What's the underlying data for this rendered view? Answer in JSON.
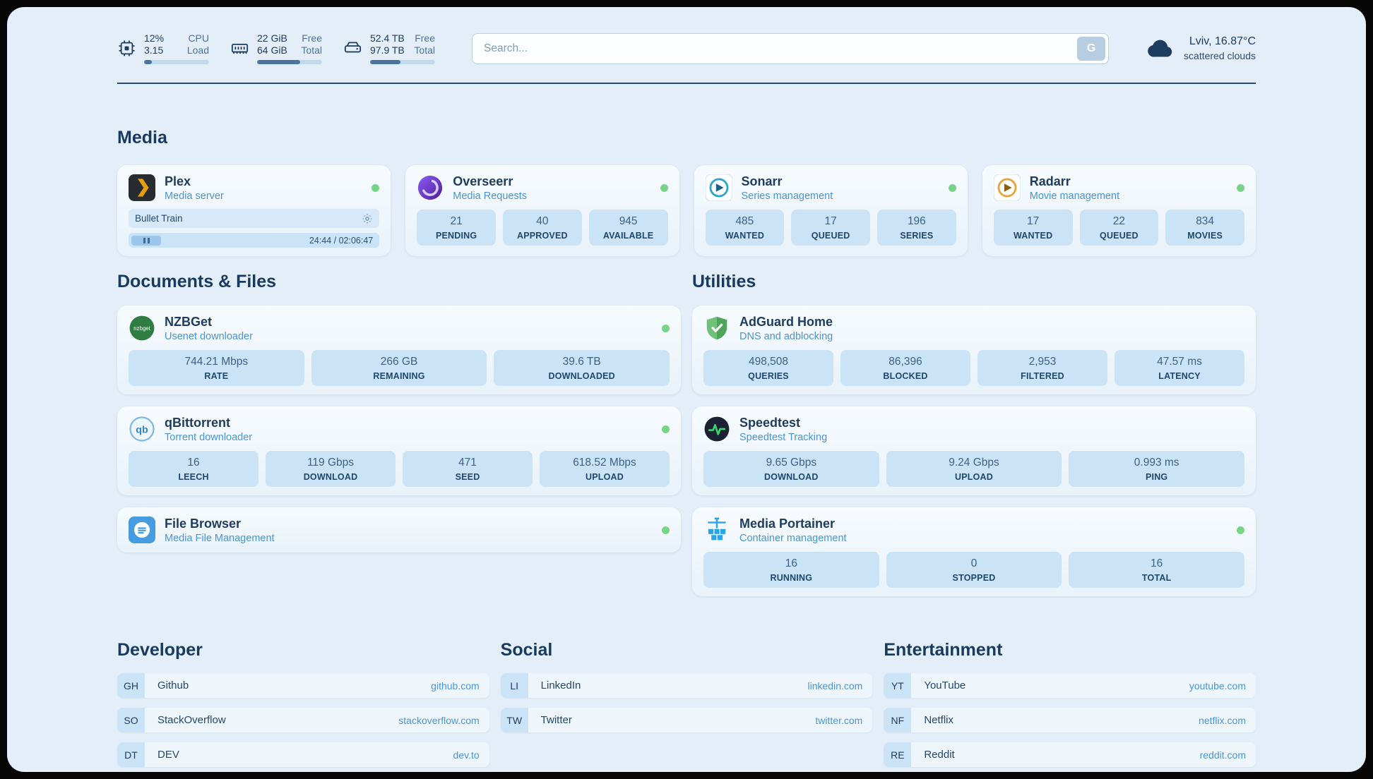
{
  "header": {
    "cpu": {
      "value1": "12%",
      "value2": "3.15",
      "label1": "CPU",
      "label2": "Load",
      "progress_pct": 12
    },
    "ram": {
      "value1": "22 GiB",
      "value2": "64 GiB",
      "label1": "Free",
      "label2": "Total",
      "progress_pct": 66
    },
    "disk": {
      "value1": "52.4 TB",
      "value2": "97.9 TB",
      "label1": "Free",
      "label2": "Total",
      "progress_pct": 47
    },
    "search": {
      "placeholder": "Search...",
      "button_label": "G"
    },
    "weather": {
      "location": "Lviv, 16.87°C",
      "condition": "scattered clouds"
    }
  },
  "sections": {
    "media": "Media",
    "documents": "Documents & Files",
    "utilities": "Utilities",
    "developer": "Developer",
    "social": "Social",
    "entertainment": "Entertainment"
  },
  "services": {
    "plex": {
      "name": "Plex",
      "desc": "Media server",
      "now_playing": "Bullet Train",
      "time": "24:44 / 02:06:47"
    },
    "overseerr": {
      "name": "Overseerr",
      "desc": "Media Requests",
      "stats": [
        {
          "value": "21",
          "label": "PENDING"
        },
        {
          "value": "40",
          "label": "APPROVED"
        },
        {
          "value": "945",
          "label": "AVAILABLE"
        }
      ]
    },
    "sonarr": {
      "name": "Sonarr",
      "desc": "Series management",
      "stats": [
        {
          "value": "485",
          "label": "WANTED"
        },
        {
          "value": "17",
          "label": "QUEUED"
        },
        {
          "value": "196",
          "label": "SERIES"
        }
      ]
    },
    "radarr": {
      "name": "Radarr",
      "desc": "Movie management",
      "stats": [
        {
          "value": "17",
          "label": "WANTED"
        },
        {
          "value": "22",
          "label": "QUEUED"
        },
        {
          "value": "834",
          "label": "MOVIES"
        }
      ]
    },
    "nzbget": {
      "name": "NZBGet",
      "desc": "Usenet downloader",
      "stats": [
        {
          "value": "744.21 Mbps",
          "label": "RATE"
        },
        {
          "value": "266 GB",
          "label": "REMAINING"
        },
        {
          "value": "39.6 TB",
          "label": "DOWNLOADED"
        }
      ]
    },
    "qbittorrent": {
      "name": "qBittorrent",
      "desc": "Torrent downloader",
      "stats": [
        {
          "value": "16",
          "label": "LEECH"
        },
        {
          "value": "119 Gbps",
          "label": "DOWNLOAD"
        },
        {
          "value": "471",
          "label": "SEED"
        },
        {
          "value": "618.52 Mbps",
          "label": "UPLOAD"
        }
      ]
    },
    "filebrowser": {
      "name": "File Browser",
      "desc": "Media File Management"
    },
    "adguard": {
      "name": "AdGuard Home",
      "desc": "DNS and adblocking",
      "stats": [
        {
          "value": "498,508",
          "label": "QUERIES"
        },
        {
          "value": "86,396",
          "label": "BLOCKED"
        },
        {
          "value": "2,953",
          "label": "FILTERED"
        },
        {
          "value": "47.57 ms",
          "label": "LATENCY"
        }
      ]
    },
    "speedtest": {
      "name": "Speedtest",
      "desc": "Speedtest Tracking",
      "stats": [
        {
          "value": "9.65 Gbps",
          "label": "DOWNLOAD"
        },
        {
          "value": "9.24 Gbps",
          "label": "UPLOAD"
        },
        {
          "value": "0.993 ms",
          "label": "PING"
        }
      ]
    },
    "portainer": {
      "name": "Media Portainer",
      "desc": "Container management",
      "stats": [
        {
          "value": "16",
          "label": "RUNNING"
        },
        {
          "value": "0",
          "label": "STOPPED"
        },
        {
          "value": "16",
          "label": "TOTAL"
        }
      ]
    }
  },
  "bookmarks": {
    "developer": [
      {
        "abbr": "GH",
        "name": "Github",
        "url": "github.com"
      },
      {
        "abbr": "SO",
        "name": "StackOverflow",
        "url": "stackoverflow.com"
      },
      {
        "abbr": "DT",
        "name": "DEV",
        "url": "dev.to"
      }
    ],
    "social": [
      {
        "abbr": "LI",
        "name": "LinkedIn",
        "url": "linkedin.com"
      },
      {
        "abbr": "TW",
        "name": "Twitter",
        "url": "twitter.com"
      }
    ],
    "entertainment": [
      {
        "abbr": "YT",
        "name": "YouTube",
        "url": "youtube.com"
      },
      {
        "abbr": "NF",
        "name": "Netflix",
        "url": "netflix.com"
      },
      {
        "abbr": "RE",
        "name": "Reddit",
        "url": "reddit.com"
      }
    ]
  }
}
